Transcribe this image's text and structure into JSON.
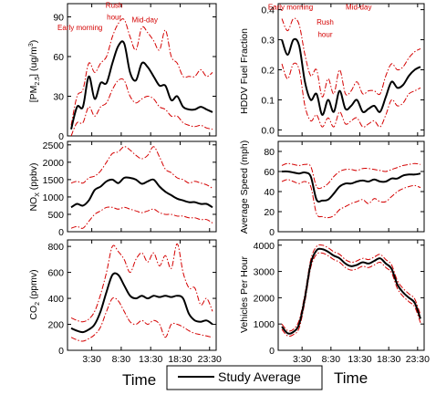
{
  "figure": {
    "x_axis_label": "Time",
    "legend": {
      "entries": [
        "Study Average"
      ],
      "placement": "bottom-center"
    }
  },
  "chart_data": [
    {
      "type": "line",
      "id": "pm25",
      "ylabel": "[PM2.5] (ug/m3)",
      "ylim": [
        0,
        100
      ],
      "yticks": [
        0,
        30,
        60,
        90
      ],
      "xlim": [
        0,
        24
      ],
      "xticks": [
        3.5,
        8.5,
        13.5,
        18.5,
        23.5
      ],
      "xtick_labels": [
        "3:30",
        "8:30",
        "13:30",
        "18:30",
        "23:30"
      ],
      "annotations": [
        {
          "text": "Early morning",
          "x": 1.5,
          "y": 80
        },
        {
          "text": "Rush",
          "x": 7.3,
          "y": 97
        },
        {
          "text": "hour",
          "x": 7.3,
          "y": 88
        },
        {
          "text": "Mid-day",
          "x": 12.5,
          "y": 86
        }
      ],
      "x": [
        0,
        1,
        2,
        3,
        4,
        5,
        6,
        7,
        8,
        9,
        10,
        11,
        12,
        13,
        14,
        15,
        16,
        17,
        18,
        19,
        20,
        21,
        22,
        23,
        24
      ],
      "series": [
        {
          "name": "Study Average",
          "role": "mean",
          "values": [
            5,
            22,
            22,
            45,
            28,
            40,
            40,
            55,
            68,
            70,
            48,
            42,
            55,
            52,
            45,
            38,
            38,
            27,
            30,
            22,
            20,
            20,
            22,
            20,
            18
          ]
        },
        {
          "role": "upper",
          "values": [
            8,
            30,
            35,
            55,
            48,
            55,
            60,
            75,
            85,
            88,
            75,
            65,
            82,
            78,
            72,
            65,
            80,
            60,
            55,
            45,
            45,
            45,
            50,
            45,
            48
          ]
        },
        {
          "role": "lower",
          "values": [
            0,
            10,
            10,
            22,
            15,
            22,
            25,
            35,
            42,
            42,
            30,
            25,
            28,
            30,
            28,
            22,
            20,
            15,
            15,
            10,
            8,
            7,
            8,
            6,
            5
          ]
        }
      ]
    },
    {
      "type": "line",
      "id": "hddv",
      "ylabel": "HDDV Fuel Fraction",
      "ylim": [
        -0.02,
        0.42
      ],
      "yticks": [
        0.0,
        0.1,
        0.2,
        0.3,
        0.4
      ],
      "xlim": [
        0,
        24
      ],
      "xticks": [
        3.5,
        8.5,
        13.5,
        18.5,
        23.5
      ],
      "xtick_labels": [
        "3:30",
        "8:30",
        "13:30",
        "18:30",
        "23:30"
      ],
      "annotations": [
        {
          "text": "Early morning",
          "x": 1.5,
          "y": 0.4
        },
        {
          "text": "Rush",
          "x": 7.5,
          "y": 0.35
        },
        {
          "text": "hour",
          "x": 7.5,
          "y": 0.31
        },
        {
          "text": "Mid-day",
          "x": 13.3,
          "y": 0.4
        }
      ],
      "x": [
        0,
        1,
        2,
        3,
        4,
        5,
        6,
        7,
        8,
        9,
        10,
        11,
        12,
        13,
        14,
        15,
        16,
        17,
        18,
        19,
        20,
        21,
        22,
        23,
        24
      ],
      "series": [
        {
          "name": "Study Average",
          "role": "mean",
          "values": [
            0.3,
            0.25,
            0.3,
            0.28,
            0.16,
            0.1,
            0.12,
            0.05,
            0.1,
            0.06,
            0.13,
            0.07,
            0.08,
            0.1,
            0.06,
            0.07,
            0.08,
            0.06,
            0.11,
            0.16,
            0.14,
            0.15,
            0.18,
            0.2,
            0.21
          ]
        },
        {
          "role": "upper",
          "values": [
            0.37,
            0.33,
            0.37,
            0.35,
            0.25,
            0.18,
            0.2,
            0.11,
            0.17,
            0.12,
            0.2,
            0.12,
            0.13,
            0.16,
            0.12,
            0.13,
            0.13,
            0.12,
            0.18,
            0.22,
            0.2,
            0.21,
            0.24,
            0.26,
            0.27
          ]
        },
        {
          "role": "lower",
          "values": [
            0.22,
            0.17,
            0.22,
            0.2,
            0.08,
            0.03,
            0.05,
            0.01,
            0.04,
            0.01,
            0.06,
            0.02,
            0.03,
            0.04,
            0.01,
            0.02,
            0.03,
            0.01,
            0.05,
            0.1,
            0.08,
            0.09,
            0.12,
            0.13,
            0.14
          ]
        }
      ]
    },
    {
      "type": "line",
      "id": "nox",
      "ylabel": "NOX (ppbv)",
      "ylim": [
        0,
        2600
      ],
      "yticks": [
        0,
        500,
        1000,
        1500,
        2000,
        2500
      ],
      "xlim": [
        0,
        24
      ],
      "xticks": [
        3.5,
        8.5,
        13.5,
        18.5,
        23.5
      ],
      "xtick_labels": [
        "3:30",
        "8:30",
        "13:30",
        "18:30",
        "23:30"
      ],
      "x": [
        0,
        1,
        2,
        3,
        4,
        5,
        6,
        7,
        8,
        9,
        10,
        11,
        12,
        13,
        14,
        15,
        16,
        17,
        18,
        19,
        20,
        21,
        22,
        23,
        24
      ],
      "series": [
        {
          "name": "Study Average",
          "role": "mean",
          "values": [
            700,
            800,
            750,
            900,
            1200,
            1300,
            1450,
            1500,
            1400,
            1550,
            1550,
            1500,
            1380,
            1450,
            1500,
            1300,
            1150,
            1050,
            950,
            900,
            850,
            850,
            800,
            800,
            700
          ]
        },
        {
          "role": "upper",
          "values": [
            1400,
            1450,
            1400,
            1550,
            1600,
            1750,
            2000,
            2250,
            2300,
            2450,
            2350,
            2200,
            2100,
            2200,
            2450,
            2150,
            1800,
            1700,
            1550,
            1500,
            1400,
            1450,
            1400,
            1350,
            1250
          ]
        },
        {
          "role": "lower",
          "values": [
            100,
            150,
            100,
            300,
            500,
            600,
            700,
            700,
            650,
            700,
            650,
            600,
            550,
            600,
            650,
            550,
            500,
            500,
            450,
            450,
            400,
            400,
            350,
            350,
            250
          ]
        }
      ]
    },
    {
      "type": "line",
      "id": "speed",
      "ylabel": "Average Speed (mph)",
      "ylim": [
        0,
        90
      ],
      "yticks": [
        0,
        20,
        40,
        60,
        80
      ],
      "xlim": [
        0,
        24
      ],
      "xticks": [
        3.5,
        8.5,
        13.5,
        18.5,
        23.5
      ],
      "xtick_labels": [
        "3:30",
        "8:30",
        "13:30",
        "18:30",
        "23:30"
      ],
      "x": [
        0,
        1,
        2,
        3,
        4,
        5,
        6,
        7,
        8,
        9,
        10,
        11,
        12,
        13,
        14,
        15,
        16,
        17,
        18,
        19,
        20,
        21,
        22,
        23,
        24
      ],
      "series": [
        {
          "name": "Study Average",
          "role": "mean",
          "values": [
            60,
            60,
            59,
            58,
            59,
            55,
            32,
            31,
            32,
            38,
            45,
            48,
            48,
            50,
            51,
            50,
            52,
            50,
            50,
            53,
            53,
            56,
            57,
            57,
            58
          ]
        },
        {
          "role": "upper",
          "values": [
            66,
            68,
            67,
            66,
            67,
            65,
            45,
            44,
            48,
            55,
            60,
            62,
            62,
            61,
            63,
            63,
            62,
            61,
            60,
            62,
            64,
            66,
            67,
            68,
            67
          ]
        },
        {
          "role": "lower",
          "values": [
            50,
            52,
            50,
            48,
            50,
            45,
            18,
            15,
            14,
            16,
            22,
            25,
            28,
            30,
            32,
            28,
            33,
            30,
            30,
            35,
            40,
            43,
            45,
            46,
            44
          ]
        }
      ]
    },
    {
      "type": "line",
      "id": "co2",
      "ylabel": "CO2 (ppmv)",
      "ylim": [
        0,
        850
      ],
      "yticks": [
        0,
        200,
        400,
        600,
        800
      ],
      "xlim": [
        0,
        24
      ],
      "xticks": [
        3.5,
        8.5,
        13.5,
        18.5,
        23.5
      ],
      "xtick_labels": [
        "3:30",
        "8:30",
        "13:30",
        "18:30",
        "23:30"
      ],
      "x": [
        0,
        1,
        2,
        3,
        4,
        5,
        6,
        7,
        8,
        9,
        10,
        11,
        12,
        13,
        14,
        15,
        16,
        17,
        18,
        19,
        20,
        21,
        22,
        23,
        24
      ],
      "series": [
        {
          "name": "Study Average",
          "role": "mean",
          "values": [
            170,
            150,
            140,
            160,
            200,
            300,
            450,
            580,
            580,
            500,
            420,
            400,
            420,
            400,
            420,
            410,
            420,
            410,
            420,
            400,
            280,
            230,
            220,
            230,
            200
          ]
        },
        {
          "role": "upper",
          "values": [
            250,
            230,
            220,
            240,
            300,
            430,
            600,
            800,
            760,
            700,
            600,
            700,
            750,
            680,
            750,
            650,
            730,
            630,
            820,
            600,
            480,
            480,
            350,
            400,
            300
          ]
        },
        {
          "role": "lower",
          "values": [
            100,
            80,
            70,
            90,
            120,
            180,
            300,
            400,
            380,
            300,
            220,
            200,
            230,
            200,
            230,
            200,
            100,
            200,
            200,
            180,
            150,
            130,
            120,
            110,
            100
          ]
        }
      ]
    },
    {
      "type": "line",
      "id": "vph",
      "ylabel": "Vehicles Per Hour",
      "ylim": [
        0,
        4200
      ],
      "yticks": [
        0,
        1000,
        2000,
        3000,
        4000
      ],
      "xlim": [
        0,
        24
      ],
      "xticks": [
        3.5,
        8.5,
        13.5,
        18.5,
        23.5
      ],
      "xtick_labels": [
        "3:30",
        "8:30",
        "13:30",
        "18:30",
        "23:30"
      ],
      "x": [
        0,
        1,
        2,
        3,
        4,
        5,
        6,
        7,
        8,
        9,
        10,
        11,
        12,
        13,
        14,
        15,
        16,
        17,
        18,
        19,
        20,
        21,
        22,
        23,
        24
      ],
      "series": [
        {
          "name": "Study Average",
          "role": "mean",
          "values": [
            900,
            650,
            700,
            1000,
            2000,
            3300,
            3800,
            3850,
            3750,
            3600,
            3500,
            3300,
            3200,
            3250,
            3350,
            3300,
            3400,
            3500,
            3300,
            3100,
            2500,
            2200,
            2000,
            1800,
            1200
          ]
        },
        {
          "role": "upper",
          "values": [
            1000,
            750,
            800,
            1150,
            2150,
            3450,
            3950,
            4000,
            3900,
            3750,
            3650,
            3450,
            3350,
            3400,
            3500,
            3450,
            3550,
            3650,
            3450,
            3250,
            2650,
            2350,
            2150,
            1950,
            1350
          ]
        },
        {
          "role": "lower",
          "values": [
            800,
            550,
            600,
            850,
            1850,
            3150,
            3650,
            3700,
            3600,
            3450,
            3350,
            3150,
            3050,
            3100,
            3200,
            3150,
            3250,
            3350,
            3150,
            2950,
            2350,
            2050,
            1850,
            1650,
            1050
          ]
        }
      ]
    }
  ]
}
